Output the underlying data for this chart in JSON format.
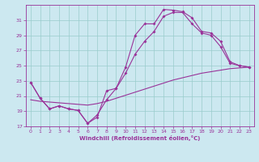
{
  "xlabel": "Windchill (Refroidissement éolien,°C)",
  "bg_color": "#cce8f0",
  "line_color": "#993399",
  "grid_color": "#99cccc",
  "xlim": [
    -0.5,
    23.5
  ],
  "ylim": [
    17,
    33
  ],
  "xticks": [
    0,
    1,
    2,
    3,
    4,
    5,
    6,
    7,
    8,
    9,
    10,
    11,
    12,
    13,
    14,
    15,
    16,
    17,
    18,
    19,
    20,
    21,
    22,
    23
  ],
  "yticks": [
    17,
    19,
    21,
    23,
    25,
    27,
    29,
    31
  ],
  "curve1_x": [
    0,
    1,
    2,
    3,
    4,
    5,
    6,
    7,
    8,
    9,
    10,
    11,
    12,
    13,
    14,
    15,
    16,
    17,
    18,
    19,
    20,
    21,
    22,
    23
  ],
  "curve1_y": [
    22.8,
    20.7,
    19.3,
    19.7,
    19.3,
    19.1,
    17.4,
    18.2,
    21.7,
    22.0,
    24.8,
    29.0,
    30.5,
    30.5,
    32.4,
    32.3,
    32.1,
    31.3,
    29.5,
    29.3,
    28.2,
    25.5,
    25.0,
    24.8
  ],
  "curve2_x": [
    0,
    1,
    2,
    3,
    4,
    5,
    6,
    7,
    8,
    9,
    10,
    11,
    12,
    13,
    14,
    15,
    16,
    17,
    18,
    19,
    20,
    21,
    22,
    23
  ],
  "curve2_y": [
    22.8,
    20.7,
    19.3,
    19.7,
    19.3,
    19.1,
    17.4,
    18.5,
    20.5,
    22.0,
    24.0,
    26.5,
    28.2,
    29.5,
    31.5,
    32.0,
    32.0,
    30.5,
    29.3,
    29.0,
    27.5,
    25.3,
    25.0,
    24.8
  ],
  "line_x": [
    0,
    1,
    2,
    3,
    4,
    5,
    6,
    7,
    8,
    9,
    10,
    11,
    12,
    13,
    14,
    15,
    16,
    17,
    18,
    19,
    20,
    21,
    22,
    23
  ],
  "line_y": [
    20.5,
    20.3,
    20.2,
    20.1,
    20.0,
    19.9,
    19.8,
    20.0,
    20.3,
    20.7,
    21.1,
    21.5,
    21.9,
    22.3,
    22.7,
    23.1,
    23.4,
    23.7,
    24.0,
    24.2,
    24.4,
    24.6,
    24.7,
    24.8
  ],
  "marker_size": 2.0,
  "line_width": 0.8,
  "tick_fontsize": 4.5,
  "xlabel_fontsize": 5.0
}
